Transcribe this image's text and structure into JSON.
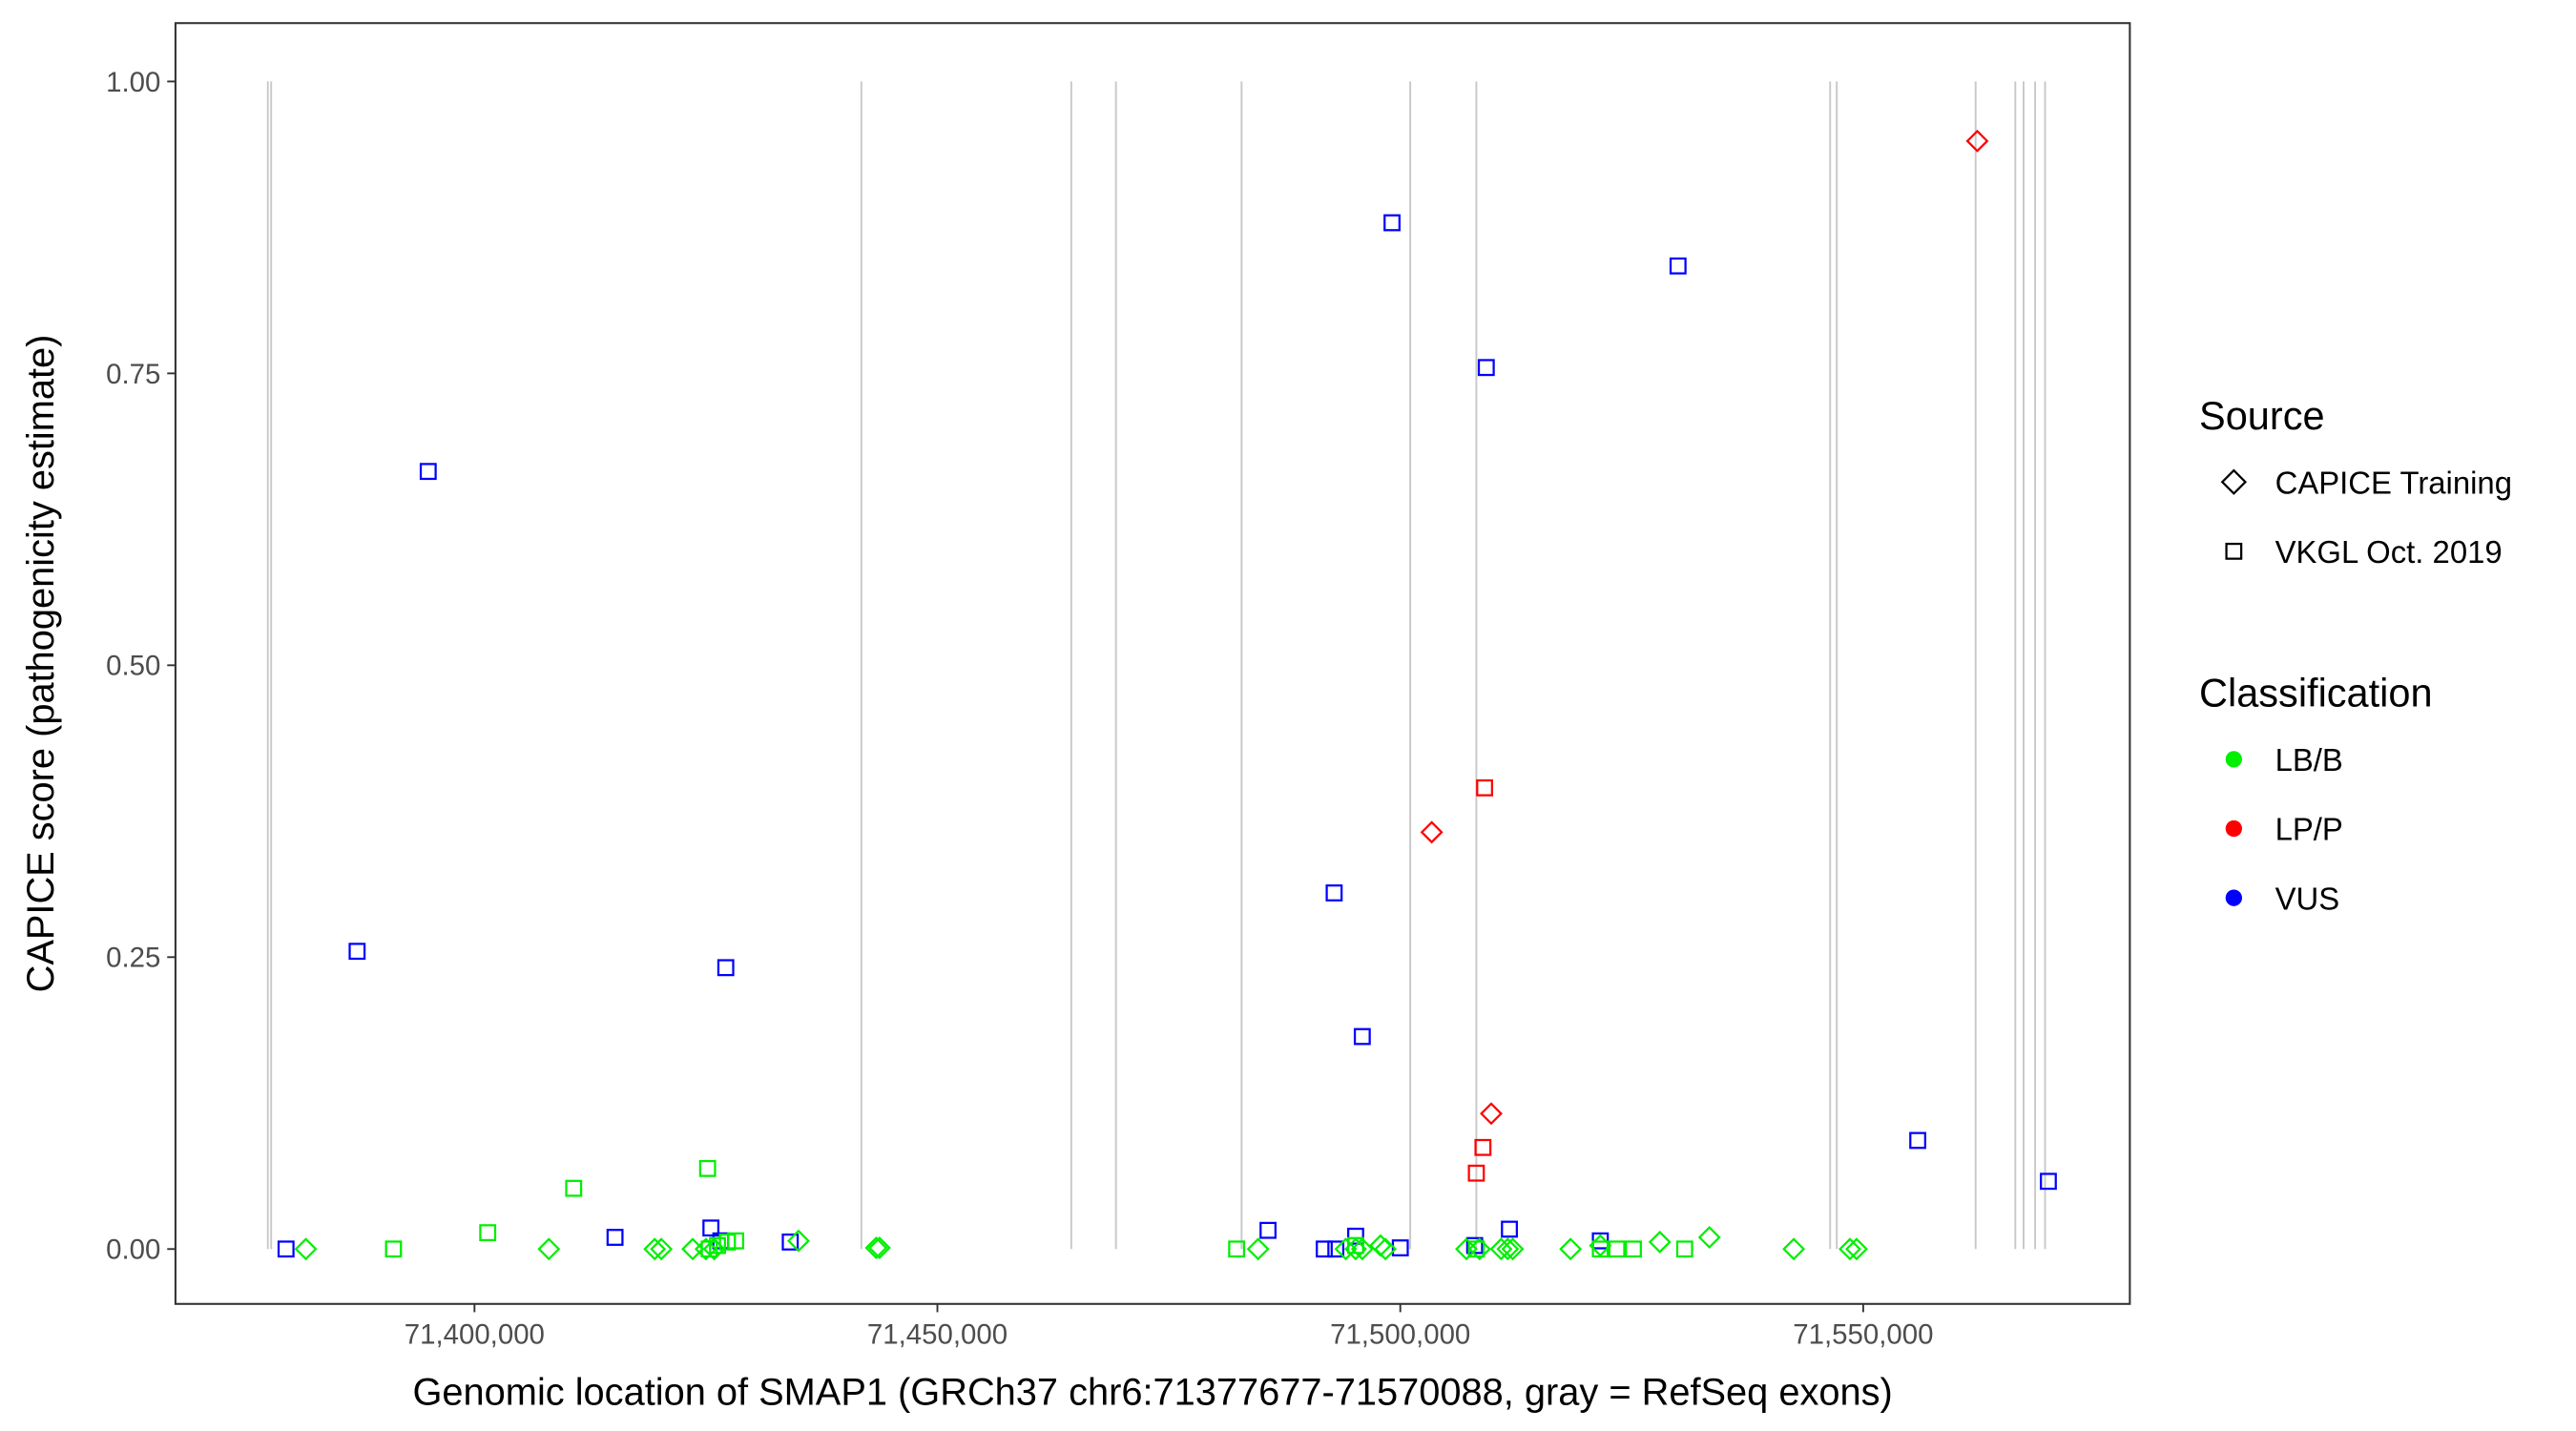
{
  "chart_data": {
    "type": "scatter",
    "xlabel": "Genomic location of SMAP1 (GRCh37 chr6:71377677-71570088, gray = RefSeq exons)",
    "ylabel": "CAPICE score (pathogenicity estimate)",
    "xlim": [
      71367700,
      71578800
    ],
    "ylim": [
      -0.047,
      1.05
    ],
    "x_ticks": [
      71400000,
      71450000,
      71500000,
      71550000
    ],
    "x_tick_labels": [
      "71,400,000",
      "71,450,000",
      "71,500,000",
      "71,550,000"
    ],
    "y_ticks": [
      0,
      0.25,
      0.5,
      0.75,
      1.0
    ],
    "y_tick_labels": [
      "0.00",
      "0.25",
      "0.50",
      "0.75",
      "1.00"
    ],
    "grid": false,
    "exons": [
      71377679,
      71378036,
      71441786,
      71464464,
      71469286,
      71482857,
      71501071,
      71508214,
      71546429,
      71547143,
      71562143,
      71566429,
      71567321,
      71568571,
      71569643
    ],
    "legend": {
      "placement": "right",
      "source_title": "Source",
      "source_items": [
        {
          "label": "CAPICE Training",
          "shape": "diamond"
        },
        {
          "label": "VKGL Oct. 2019",
          "shape": "square"
        }
      ],
      "class_title": "Classification",
      "class_items": [
        {
          "label": "LB/B",
          "color": "#00ee00"
        },
        {
          "label": "LP/P",
          "color": "#ff0000"
        },
        {
          "label": "VUS",
          "color": "#0000ff"
        }
      ]
    },
    "colors": {
      "LB/B": "#00ee00",
      "LP/P": "#ff0000",
      "VUS": "#0000ff"
    },
    "points": [
      {
        "x": 71379643,
        "y": 0,
        "shape": "square",
        "class": "VUS"
      },
      {
        "x": 71387321,
        "y": 0.255,
        "shape": "square",
        "class": "VUS"
      },
      {
        "x": 71395000,
        "y": 0.666,
        "shape": "square",
        "class": "VUS"
      },
      {
        "x": 71415179,
        "y": 0.01,
        "shape": "square",
        "class": "VUS"
      },
      {
        "x": 71425536,
        "y": 0.018,
        "shape": "square",
        "class": "VUS"
      },
      {
        "x": 71427143,
        "y": 0.241,
        "shape": "square",
        "class": "VUS"
      },
      {
        "x": 71426607,
        "y": 0.007,
        "shape": "square",
        "class": "VUS"
      },
      {
        "x": 71434107,
        "y": 0.006,
        "shape": "square",
        "class": "VUS"
      },
      {
        "x": 71485714,
        "y": 0.016,
        "shape": "square",
        "class": "VUS"
      },
      {
        "x": 71491786,
        "y": 0,
        "shape": "square",
        "class": "VUS"
      },
      {
        "x": 71492857,
        "y": 0.305,
        "shape": "square",
        "class": "VUS"
      },
      {
        "x": 71493036,
        "y": 0,
        "shape": "square",
        "class": "VUS"
      },
      {
        "x": 71495179,
        "y": 0.011,
        "shape": "square",
        "class": "VUS"
      },
      {
        "x": 71495893,
        "y": 0.182,
        "shape": "square",
        "class": "VUS"
      },
      {
        "x": 71499107,
        "y": 0.879,
        "shape": "square",
        "class": "VUS"
      },
      {
        "x": 71500000,
        "y": 0.001,
        "shape": "square",
        "class": "VUS"
      },
      {
        "x": 71508036,
        "y": 0.003,
        "shape": "square",
        "class": "VUS"
      },
      {
        "x": 71509286,
        "y": 0.755,
        "shape": "square",
        "class": "VUS"
      },
      {
        "x": 71511786,
        "y": 0.017,
        "shape": "square",
        "class": "VUS"
      },
      {
        "x": 71521607,
        "y": 0.007,
        "shape": "square",
        "class": "VUS"
      },
      {
        "x": 71530000,
        "y": 0.842,
        "shape": "square",
        "class": "VUS"
      },
      {
        "x": 71555893,
        "y": 0.093,
        "shape": "square",
        "class": "VUS"
      },
      {
        "x": 71570000,
        "y": 0.058,
        "shape": "square",
        "class": "VUS"
      },
      {
        "x": 71508214,
        "y": 0.065,
        "shape": "square",
        "class": "LP/P"
      },
      {
        "x": 71508929,
        "y": 0.087,
        "shape": "square",
        "class": "LP/P"
      },
      {
        "x": 71509107,
        "y": 0.395,
        "shape": "square",
        "class": "LP/P"
      },
      {
        "x": 71503393,
        "y": 0.357,
        "shape": "diamond",
        "class": "LP/P"
      },
      {
        "x": 71509821,
        "y": 0.116,
        "shape": "diamond",
        "class": "LP/P"
      },
      {
        "x": 71562321,
        "y": 0.949,
        "shape": "diamond",
        "class": "LP/P"
      },
      {
        "x": 71391250,
        "y": 0,
        "shape": "square",
        "class": "LB/B"
      },
      {
        "x": 71401429,
        "y": 0.014,
        "shape": "square",
        "class": "LB/B"
      },
      {
        "x": 71410714,
        "y": 0.052,
        "shape": "square",
        "class": "LB/B"
      },
      {
        "x": 71425179,
        "y": 0.069,
        "shape": "square",
        "class": "LB/B"
      },
      {
        "x": 71425357,
        "y": 0,
        "shape": "square",
        "class": "LB/B"
      },
      {
        "x": 71426250,
        "y": 0.003,
        "shape": "square",
        "class": "LB/B"
      },
      {
        "x": 71427321,
        "y": 0.006,
        "shape": "square",
        "class": "LB/B"
      },
      {
        "x": 71428214,
        "y": 0.007,
        "shape": "square",
        "class": "LB/B"
      },
      {
        "x": 71482321,
        "y": 0,
        "shape": "square",
        "class": "LB/B"
      },
      {
        "x": 71495179,
        "y": 0.003,
        "shape": "square",
        "class": "LB/B"
      },
      {
        "x": 71508214,
        "y": 0,
        "shape": "square",
        "class": "LB/B"
      },
      {
        "x": 71521607,
        "y": 0,
        "shape": "square",
        "class": "LB/B"
      },
      {
        "x": 71523393,
        "y": 0,
        "shape": "square",
        "class": "LB/B"
      },
      {
        "x": 71525179,
        "y": 0,
        "shape": "square",
        "class": "LB/B"
      },
      {
        "x": 71530714,
        "y": 0,
        "shape": "square",
        "class": "LB/B"
      },
      {
        "x": 71381786,
        "y": 0,
        "shape": "diamond",
        "class": "LB/B"
      },
      {
        "x": 71408036,
        "y": 0,
        "shape": "diamond",
        "class": "LB/B"
      },
      {
        "x": 71419464,
        "y": 0,
        "shape": "diamond",
        "class": "LB/B"
      },
      {
        "x": 71420179,
        "y": 0,
        "shape": "diamond",
        "class": "LB/B"
      },
      {
        "x": 71423571,
        "y": 0,
        "shape": "diamond",
        "class": "LB/B"
      },
      {
        "x": 71425000,
        "y": 0,
        "shape": "diamond",
        "class": "LB/B"
      },
      {
        "x": 71425893,
        "y": 0,
        "shape": "diamond",
        "class": "LB/B"
      },
      {
        "x": 71435000,
        "y": 0.007,
        "shape": "diamond",
        "class": "LB/B"
      },
      {
        "x": 71443393,
        "y": 0.001,
        "shape": "diamond",
        "class": "LB/B"
      },
      {
        "x": 71443750,
        "y": 0.001,
        "shape": "diamond",
        "class": "LB/B"
      },
      {
        "x": 71484643,
        "y": 0,
        "shape": "diamond",
        "class": "LB/B"
      },
      {
        "x": 71494107,
        "y": 0,
        "shape": "diamond",
        "class": "LB/B"
      },
      {
        "x": 71495179,
        "y": 0,
        "shape": "diamond",
        "class": "LB/B"
      },
      {
        "x": 71495893,
        "y": 0,
        "shape": "diamond",
        "class": "LB/B"
      },
      {
        "x": 71497857,
        "y": 0.003,
        "shape": "diamond",
        "class": "LB/B"
      },
      {
        "x": 71498393,
        "y": 0,
        "shape": "diamond",
        "class": "LB/B"
      },
      {
        "x": 71507143,
        "y": 0,
        "shape": "diamond",
        "class": "LB/B"
      },
      {
        "x": 71508571,
        "y": 0,
        "shape": "diamond",
        "class": "LB/B"
      },
      {
        "x": 71510893,
        "y": 0,
        "shape": "diamond",
        "class": "LB/B"
      },
      {
        "x": 71511607,
        "y": 0,
        "shape": "diamond",
        "class": "LB/B"
      },
      {
        "x": 71512143,
        "y": 0,
        "shape": "diamond",
        "class": "LB/B"
      },
      {
        "x": 71518393,
        "y": 0,
        "shape": "diamond",
        "class": "LB/B"
      },
      {
        "x": 71521607,
        "y": 0.003,
        "shape": "diamond",
        "class": "LB/B"
      },
      {
        "x": 71528036,
        "y": 0.006,
        "shape": "diamond",
        "class": "LB/B"
      },
      {
        "x": 71533393,
        "y": 0.01,
        "shape": "diamond",
        "class": "LB/B"
      },
      {
        "x": 71542500,
        "y": 0,
        "shape": "diamond",
        "class": "LB/B"
      },
      {
        "x": 71548571,
        "y": 0,
        "shape": "diamond",
        "class": "LB/B"
      },
      {
        "x": 71549286,
        "y": 0,
        "shape": "diamond",
        "class": "LB/B"
      }
    ]
  }
}
